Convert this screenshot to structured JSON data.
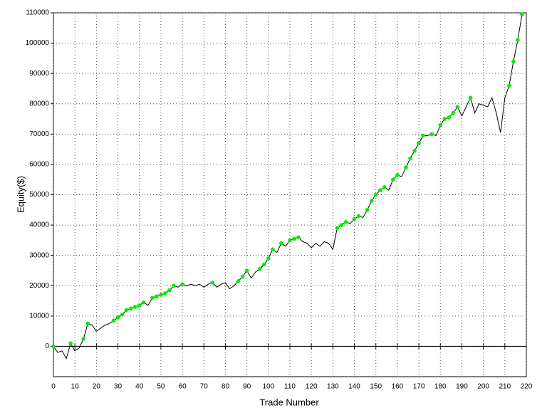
{
  "chart_data": {
    "type": "line",
    "xlabel": "Trade Number",
    "ylabel": "Equity($)",
    "x": [
      0,
      2,
      4,
      6,
      8,
      10,
      12,
      14,
      16,
      18,
      20,
      22,
      24,
      26,
      28,
      30,
      32,
      34,
      36,
      38,
      40,
      42,
      44,
      46,
      48,
      50,
      52,
      54,
      56,
      58,
      60,
      62,
      64,
      66,
      68,
      70,
      72,
      74,
      76,
      78,
      80,
      82,
      84,
      86,
      88,
      90,
      92,
      94,
      96,
      98,
      100,
      102,
      104,
      106,
      108,
      110,
      112,
      114,
      116,
      118,
      120,
      122,
      124,
      126,
      128,
      130,
      132,
      134,
      136,
      138,
      140,
      142,
      144,
      146,
      148,
      150,
      152,
      154,
      156,
      158,
      160,
      162,
      164,
      166,
      168,
      170,
      172,
      174,
      176,
      178,
      180,
      182,
      184,
      186,
      188,
      190,
      192,
      194,
      196,
      198,
      200,
      202,
      204,
      206,
      208,
      210,
      212,
      214,
      216,
      218
    ],
    "series": [
      {
        "name": "Equity",
        "color": "#000000",
        "marker_color": "#00ee00",
        "values": [
          0,
          -2000,
          -1500,
          -4000,
          1000,
          -1500,
          -500,
          2500,
          7500,
          7000,
          5000,
          6000,
          7000,
          7500,
          8500,
          9500,
          10500,
          12000,
          12500,
          13000,
          13500,
          14500,
          13500,
          16000,
          16500,
          17000,
          17500,
          18500,
          20000,
          19500,
          20500,
          20000,
          20500,
          20000,
          20500,
          19500,
          20500,
          21000,
          19500,
          20500,
          21000,
          19000,
          20000,
          21500,
          23000,
          25000,
          22500,
          24500,
          25500,
          27000,
          29000,
          32000,
          31000,
          34000,
          33000,
          35000,
          35500,
          36000,
          34500,
          34000,
          32500,
          34000,
          33000,
          34500,
          34000,
          32000,
          39000,
          40000,
          41000,
          40500,
          42000,
          43000,
          42500,
          45000,
          48000,
          50000,
          51500,
          52500,
          51500,
          55000,
          56500,
          56000,
          59000,
          62000,
          64500,
          67000,
          69500,
          69500,
          70000,
          69500,
          73000,
          75000,
          75500,
          77000,
          79000,
          76000,
          79000,
          82000,
          77000,
          80000,
          79500,
          79000,
          82000,
          77000,
          70500,
          82000,
          86000,
          94000,
          101000,
          109500
        ]
      }
    ],
    "xlim": [
      0,
      220
    ],
    "xticks": [
      0,
      10,
      20,
      30,
      40,
      50,
      60,
      70,
      80,
      90,
      100,
      110,
      120,
      130,
      140,
      150,
      160,
      170,
      180,
      190,
      200,
      210,
      220
    ],
    "ylim": [
      -10000,
      110000
    ],
    "yticks": [
      0,
      10000,
      20000,
      30000,
      40000,
      50000,
      60000,
      70000,
      80000,
      90000,
      100000,
      110000
    ],
    "grid": true
  }
}
